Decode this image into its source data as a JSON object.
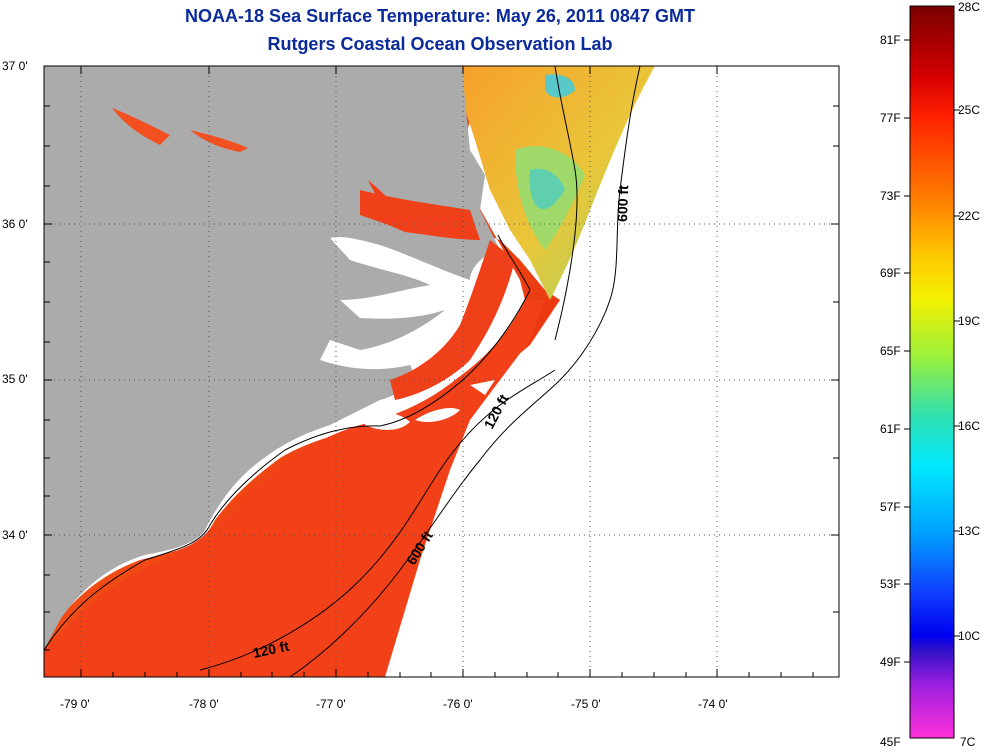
{
  "title": "NOAA-18 Sea Surface Temperature:  May 26, 2011 0847 GMT",
  "subtitle": "Rutgers Coastal Ocean Observation Lab",
  "lat_labels": [
    "37 0'",
    "36 0'",
    "35 0'",
    "34 0'"
  ],
  "lon_labels": [
    "-79 0'",
    "-78 0'",
    "-77 0'",
    "-76 0'",
    "-75 0'",
    "-74 0'"
  ],
  "contours": {
    "c600_upper": "600 ft",
    "c120_mid": "120 ft",
    "c600_lower": "600 ft",
    "c120_lower": "120 ft"
  },
  "colorbar": {
    "fahrenheit": [
      "81F",
      "77F",
      "73F",
      "69F",
      "65F",
      "61F",
      "57F",
      "53F",
      "49F",
      "45F"
    ],
    "celsius": [
      "28C",
      "25C",
      "22C",
      "19C",
      "16C",
      "13C",
      "10C",
      "7C"
    ]
  },
  "colors": {
    "land": "#ababab",
    "title": "#0b2b9a",
    "sst_warm": "#f23a12",
    "sst_mid": "#f9a020"
  }
}
